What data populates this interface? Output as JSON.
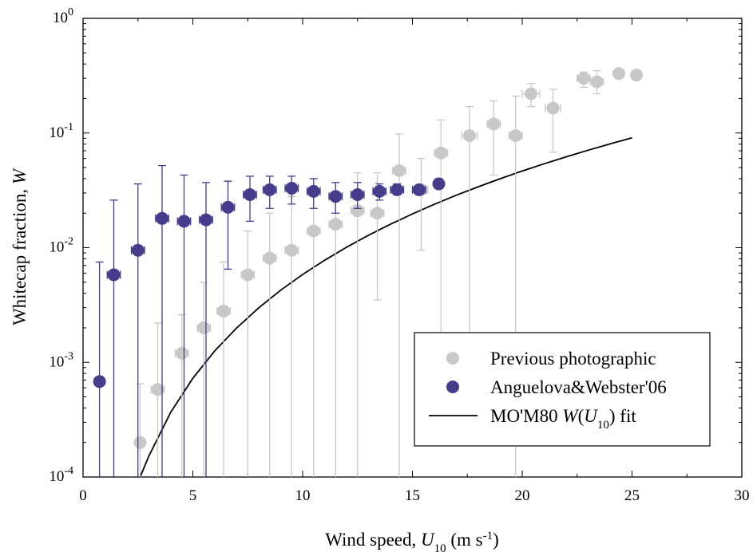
{
  "chart_data": {
    "type": "scatter",
    "yscale": "log",
    "xlim": [
      0,
      30
    ],
    "ylim": [
      0.0001,
      1
    ],
    "x_ticks": [
      0,
      5,
      10,
      15,
      20,
      25,
      30
    ],
    "y_ticks": [
      {
        "value": 0.0001,
        "base": "10",
        "exp": "-4"
      },
      {
        "value": 0.001,
        "base": "10",
        "exp": "-3"
      },
      {
        "value": 0.01,
        "base": "10",
        "exp": "-2"
      },
      {
        "value": 0.1,
        "base": "10",
        "exp": "-1"
      },
      {
        "value": 1,
        "base": "10",
        "exp": "0"
      }
    ],
    "xlabel": {
      "main": "Wind speed, ",
      "var": "U",
      "sub": "10",
      "unit_pre": " (m s",
      "unit_sup": "-1",
      "unit_post": ")"
    },
    "ylabel": {
      "main": "Whitecap fraction, ",
      "var": "W"
    },
    "grid": false,
    "legend_position": "bottom-right",
    "legend": [
      {
        "label": "Previous photographic"
      },
      {
        "label": "Anguelova&Webster'06"
      },
      {
        "label_pre": "MO'M80 ",
        "var1": "W",
        "paren_open": "(",
        "var2": "U",
        "sub": "10",
        "paren_close": ")",
        "label_post": " fit"
      }
    ],
    "series": [
      {
        "name": "Previous photographic",
        "color": "#c8c8c8",
        "points": [
          {
            "x": 2.6,
            "y": 0.0002,
            "xerr": 0,
            "ylow": 0.0001,
            "yhigh": 0.00065
          },
          {
            "x": 3.4,
            "y": 0.00058,
            "xerr": 0.3,
            "ylow": 0.0001,
            "yhigh": 0.0022
          },
          {
            "x": 4.5,
            "y": 0.0012,
            "xerr": 0.3,
            "ylow": 0.0001,
            "yhigh": 0.0026
          },
          {
            "x": 5.5,
            "y": 0.002,
            "xerr": 0.3,
            "ylow": 0.0001,
            "yhigh": 0.005
          },
          {
            "x": 6.4,
            "y": 0.0028,
            "xerr": 0.3,
            "ylow": 0.0001,
            "yhigh": 0.0075
          },
          {
            "x": 7.5,
            "y": 0.0058,
            "xerr": 0.3,
            "ylow": 0.0001,
            "yhigh": 0.014
          },
          {
            "x": 8.5,
            "y": 0.0081,
            "xerr": 0.3,
            "ylow": 0.0001,
            "yhigh": 0.02
          },
          {
            "x": 9.5,
            "y": 0.0095,
            "xerr": 0.3,
            "ylow": 0.0001,
            "yhigh": 0.028
          },
          {
            "x": 10.5,
            "y": 0.014,
            "xerr": 0.3,
            "ylow": 0.0001,
            "yhigh": 0.03
          },
          {
            "x": 11.5,
            "y": 0.016,
            "xerr": 0.3,
            "ylow": 0.0001,
            "yhigh": 0.03
          },
          {
            "x": 12.5,
            "y": 0.021,
            "xerr": 0.3,
            "ylow": 0.0001,
            "yhigh": 0.045
          },
          {
            "x": 13.4,
            "y": 0.02,
            "xerr": 0.3,
            "ylow": 0.0035,
            "yhigh": 0.045
          },
          {
            "x": 14.4,
            "y": 0.047,
            "xerr": 0.3,
            "ylow": 0.0001,
            "yhigh": 0.098
          },
          {
            "x": 15.4,
            "y": 0.032,
            "xerr": 0.3,
            "ylow": 0.0095,
            "yhigh": 0.06
          },
          {
            "x": 16.3,
            "y": 0.067,
            "xerr": 0.3,
            "ylow": 0.00024,
            "yhigh": 0.13
          },
          {
            "x": 17.6,
            "y": 0.095,
            "xerr": 0.35,
            "ylow": 0.0017,
            "yhigh": 0.17
          },
          {
            "x": 18.7,
            "y": 0.12,
            "xerr": 0.3,
            "ylow": 0.043,
            "yhigh": 0.19
          },
          {
            "x": 19.7,
            "y": 0.095,
            "xerr": 0.3,
            "ylow": 0.0001,
            "yhigh": 0.21
          },
          {
            "x": 20.4,
            "y": 0.22,
            "xerr": 0.4,
            "ylow": 0.17,
            "yhigh": 0.27
          },
          {
            "x": 21.4,
            "y": 0.165,
            "xerr": 0.35,
            "ylow": 0.068,
            "yhigh": 0.24
          },
          {
            "x": 22.8,
            "y": 0.3,
            "xerr": 0.3,
            "ylow": 0.25,
            "yhigh": 0.34
          },
          {
            "x": 23.4,
            "y": 0.28,
            "xerr": 0.3,
            "ylow": 0.22,
            "yhigh": 0.35
          },
          {
            "x": 24.4,
            "y": 0.33,
            "xerr": 0,
            "ylow": 0.33,
            "yhigh": 0.33
          },
          {
            "x": 25.2,
            "y": 0.32,
            "xerr": 0,
            "ylow": 0.32,
            "yhigh": 0.32
          }
        ]
      },
      {
        "name": "Anguelova&Webster'06",
        "color": "#463c8c",
        "points": [
          {
            "x": 0.75,
            "y": 0.00068,
            "xerr": 0,
            "ylow": 0.0001,
            "yhigh": 0.0075
          },
          {
            "x": 1.4,
            "y": 0.0058,
            "xerr": 0.3,
            "ylow": 0.0001,
            "yhigh": 0.026
          },
          {
            "x": 2.5,
            "y": 0.0095,
            "xerr": 0.3,
            "ylow": 0.0001,
            "yhigh": 0.036
          },
          {
            "x": 3.6,
            "y": 0.018,
            "xerr": 0.3,
            "ylow": 0.0001,
            "yhigh": 0.052
          },
          {
            "x": 4.6,
            "y": 0.017,
            "xerr": 0.3,
            "ylow": 0.0001,
            "yhigh": 0.043
          },
          {
            "x": 5.6,
            "y": 0.0175,
            "xerr": 0.3,
            "ylow": 0.0001,
            "yhigh": 0.037
          },
          {
            "x": 6.6,
            "y": 0.0225,
            "xerr": 0.3,
            "ylow": 0.0065,
            "yhigh": 0.038
          },
          {
            "x": 7.6,
            "y": 0.029,
            "xerr": 0.3,
            "ylow": 0.017,
            "yhigh": 0.042
          },
          {
            "x": 8.5,
            "y": 0.032,
            "xerr": 0.3,
            "ylow": 0.022,
            "yhigh": 0.042
          },
          {
            "x": 9.5,
            "y": 0.033,
            "xerr": 0.3,
            "ylow": 0.024,
            "yhigh": 0.042
          },
          {
            "x": 10.5,
            "y": 0.031,
            "xerr": 0.3,
            "ylow": 0.022,
            "yhigh": 0.04
          },
          {
            "x": 11.5,
            "y": 0.028,
            "xerr": 0.3,
            "ylow": 0.02,
            "yhigh": 0.037
          },
          {
            "x": 12.5,
            "y": 0.029,
            "xerr": 0.3,
            "ylow": 0.022,
            "yhigh": 0.037
          },
          {
            "x": 13.5,
            "y": 0.031,
            "xerr": 0.3,
            "ylow": 0.026,
            "yhigh": 0.036
          },
          {
            "x": 14.3,
            "y": 0.032,
            "xerr": 0.3,
            "ylow": 0.029,
            "yhigh": 0.036
          },
          {
            "x": 15.3,
            "y": 0.032,
            "xerr": 0.3,
            "ylow": 0.03,
            "yhigh": 0.035
          },
          {
            "x": 16.2,
            "y": 0.036,
            "xerr": 0.2,
            "ylow": 0.033,
            "yhigh": 0.04
          }
        ]
      },
      {
        "name": "MO'M80 W(U10) fit",
        "type": "line",
        "color": "#000000",
        "x": [
          2.6,
          3,
          4,
          5,
          6,
          7,
          8,
          9,
          10,
          11,
          12,
          13,
          14,
          15,
          16,
          17,
          18,
          19,
          20,
          21,
          22,
          23,
          24,
          25
        ],
        "y": [
          0.0001,
          0.000153,
          0.000369,
          0.000726,
          0.00126,
          0.002,
          0.00299,
          0.00426,
          0.00584,
          0.00777,
          0.01009,
          0.01283,
          0.01602,
          0.0197,
          0.0239,
          0.0287,
          0.034,
          0.04,
          0.0466,
          0.0539,
          0.062,
          0.0708,
          0.0804,
          0.0909
        ]
      }
    ]
  }
}
